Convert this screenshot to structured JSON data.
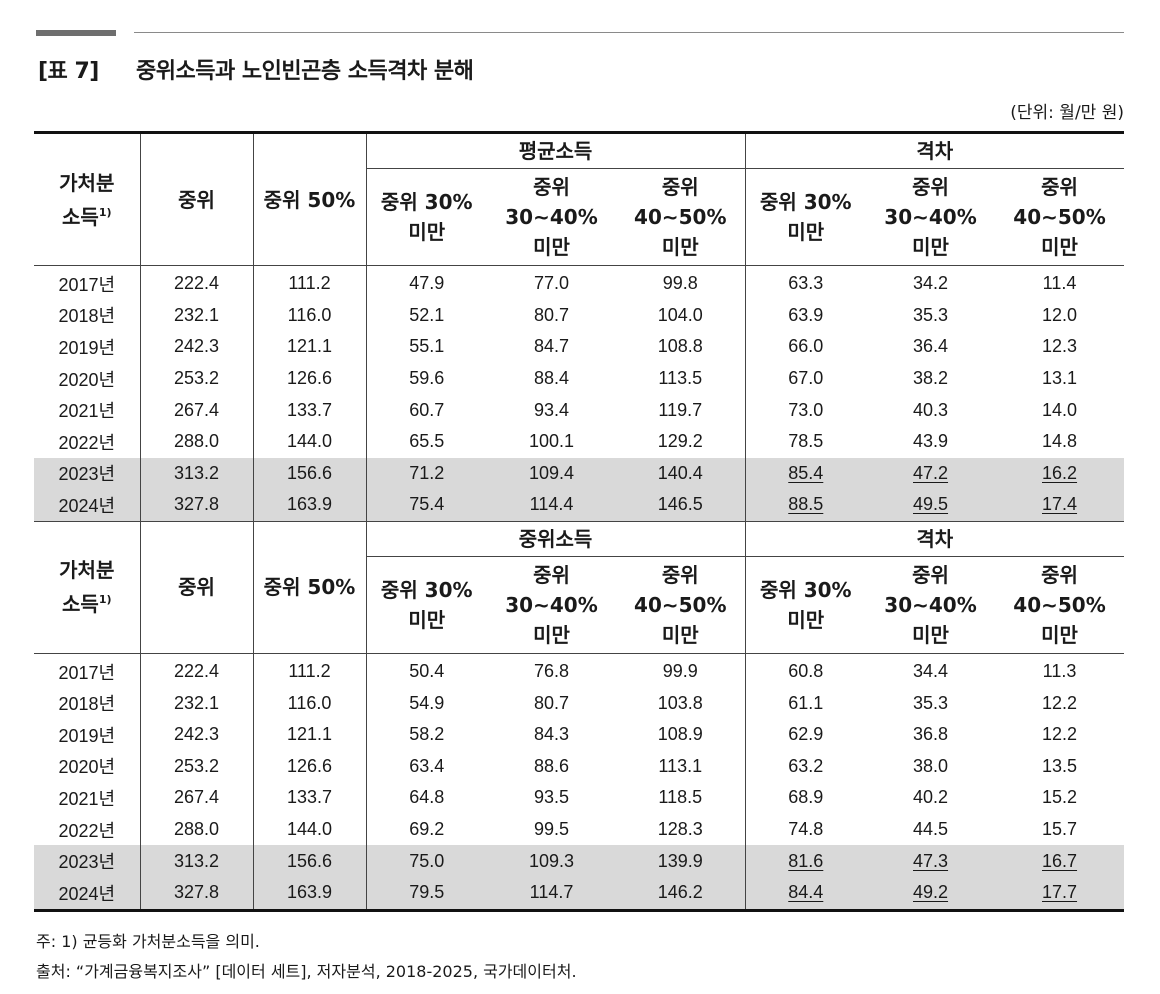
{
  "header": {
    "table_number": "[표 7]",
    "title": "중위소득과 노인빈곤층 소득격차 분해",
    "unit": "(단위: 월/만 원)"
  },
  "columns": {
    "disposable_income_main": "가처분",
    "disposable_income_sub": "소득",
    "footnote_mark": "1)",
    "median": "중위",
    "median50": "중위 50%",
    "gap_group": "격차",
    "sub_cols": [
      {
        "l1": "중위 30%",
        "l2": "미만",
        "l3": ""
      },
      {
        "l1": "중위",
        "l2": "30∼40%",
        "l3": "미만"
      },
      {
        "l1": "중위",
        "l2": "40∼50%",
        "l3": "미만"
      }
    ]
  },
  "blocks": [
    {
      "group_label": "평균소득",
      "rows": [
        {
          "year": "2017년",
          "median": "222.4",
          "median50": "111.2",
          "g1": "47.9",
          "g2": "77.0",
          "g3": "99.8",
          "d1": "63.3",
          "d2": "34.2",
          "d3": "11.4"
        },
        {
          "year": "2018년",
          "median": "232.1",
          "median50": "116.0",
          "g1": "52.1",
          "g2": "80.7",
          "g3": "104.0",
          "d1": "63.9",
          "d2": "35.3",
          "d3": "12.0"
        },
        {
          "year": "2019년",
          "median": "242.3",
          "median50": "121.1",
          "g1": "55.1",
          "g2": "84.7",
          "g3": "108.8",
          "d1": "66.0",
          "d2": "36.4",
          "d3": "12.3"
        },
        {
          "year": "2020년",
          "median": "253.2",
          "median50": "126.6",
          "g1": "59.6",
          "g2": "88.4",
          "g3": "113.5",
          "d1": "67.0",
          "d2": "38.2",
          "d3": "13.1"
        },
        {
          "year": "2021년",
          "median": "267.4",
          "median50": "133.7",
          "g1": "60.7",
          "g2": "93.4",
          "g3": "119.7",
          "d1": "73.0",
          "d2": "40.3",
          "d3": "14.0"
        },
        {
          "year": "2022년",
          "median": "288.0",
          "median50": "144.0",
          "g1": "65.5",
          "g2": "100.1",
          "g3": "129.2",
          "d1": "78.5",
          "d2": "43.9",
          "d3": "14.8"
        },
        {
          "year": "2023년",
          "median": "313.2",
          "median50": "156.6",
          "g1": "71.2",
          "g2": "109.4",
          "g3": "140.4",
          "d1": "85.4",
          "d2": "47.2",
          "d3": "16.2"
        },
        {
          "year": "2024년",
          "median": "327.8",
          "median50": "163.9",
          "g1": "75.4",
          "g2": "114.4",
          "g3": "146.5",
          "d1": "88.5",
          "d2": "49.5",
          "d3": "17.4"
        }
      ]
    },
    {
      "group_label": "중위소득",
      "rows": [
        {
          "year": "2017년",
          "median": "222.4",
          "median50": "111.2",
          "g1": "50.4",
          "g2": "76.8",
          "g3": "99.9",
          "d1": "60.8",
          "d2": "34.4",
          "d3": "11.3"
        },
        {
          "year": "2018년",
          "median": "232.1",
          "median50": "116.0",
          "g1": "54.9",
          "g2": "80.7",
          "g3": "103.8",
          "d1": "61.1",
          "d2": "35.3",
          "d3": "12.2"
        },
        {
          "year": "2019년",
          "median": "242.3",
          "median50": "121.1",
          "g1": "58.2",
          "g2": "84.3",
          "g3": "108.9",
          "d1": "62.9",
          "d2": "36.8",
          "d3": "12.2"
        },
        {
          "year": "2020년",
          "median": "253.2",
          "median50": "126.6",
          "g1": "63.4",
          "g2": "88.6",
          "g3": "113.1",
          "d1": "63.2",
          "d2": "38.0",
          "d3": "13.5"
        },
        {
          "year": "2021년",
          "median": "267.4",
          "median50": "133.7",
          "g1": "64.8",
          "g2": "93.5",
          "g3": "118.5",
          "d1": "68.9",
          "d2": "40.2",
          "d3": "15.2"
        },
        {
          "year": "2022년",
          "median": "288.0",
          "median50": "144.0",
          "g1": "69.2",
          "g2": "99.5",
          "g3": "128.3",
          "d1": "74.8",
          "d2": "44.5",
          "d3": "15.7"
        },
        {
          "year": "2023년",
          "median": "313.2",
          "median50": "156.6",
          "g1": "75.0",
          "g2": "109.3",
          "g3": "139.9",
          "d1": "81.6",
          "d2": "47.3",
          "d3": "16.7"
        },
        {
          "year": "2024년",
          "median": "327.8",
          "median50": "163.9",
          "g1": "79.5",
          "g2": "114.7",
          "g3": "146.2",
          "d1": "84.4",
          "d2": "49.2",
          "d3": "17.7"
        }
      ]
    }
  ],
  "notes": {
    "footnote": "주: 1) 균등화 가처분소득을 의미.",
    "source": "출처: “가계금융복지조사” [데이터 세트], 저자분석, 2018-2025, 국가데이터처."
  },
  "style": {
    "highlight_rows_bg": "#d9d9d9",
    "rule_color": "#111111"
  }
}
